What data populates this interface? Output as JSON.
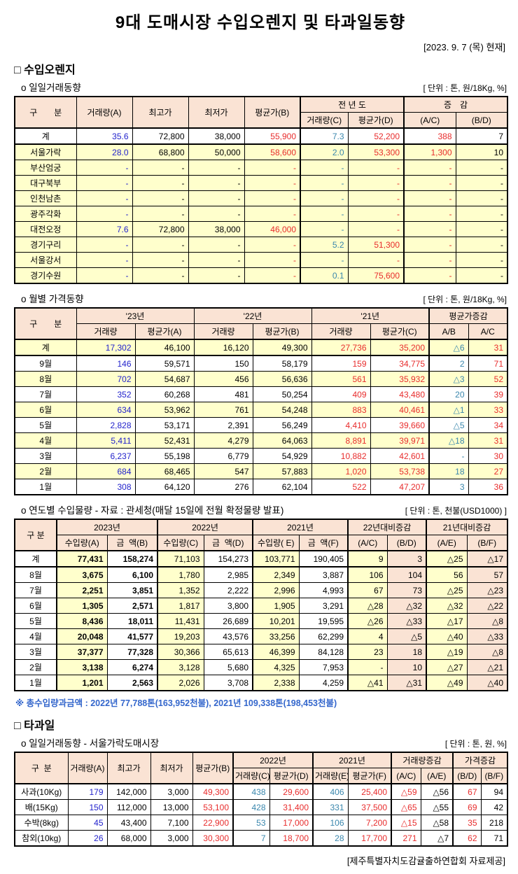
{
  "page": {
    "title": "9대 도매시장 수입오렌지 및 타과일동향",
    "date_note": "[2023.  9. 7 (목) 현재]",
    "footer": "[제주특별자치도감귤출하연합회 자료제공]"
  },
  "colors": {
    "header_bg": "#fae3d4",
    "stripe_bg": "#ffffcc",
    "value_blue": "#2222cc",
    "value_teal": "#3a87ad",
    "value_red": "#e82c2c",
    "note_blue": "#3366cc"
  },
  "section_orange": {
    "heading": "□ 수입오렌지"
  },
  "section_fruit": {
    "heading": "□ 타과일"
  },
  "daily_table": {
    "heading": "o 일일거래동향",
    "unit": "[ 단위 : 톤, 원/18Kg, %]",
    "header": {
      "gubun": "구　　분",
      "c1": "거래량(A)",
      "c2": "최고가",
      "c3": "최저가",
      "c4": "평균가(B)",
      "g1": "전 년 도",
      "g2": "증　감",
      "s1": "거래량(C)",
      "s2": "평균가(D)",
      "s3": "(A/C)",
      "s4": "(B/D)"
    },
    "col_styles": [
      "label",
      "blue",
      "black",
      "black",
      "red",
      "teal",
      "red",
      "red",
      "black"
    ],
    "rows": [
      {
        "bg": "w",
        "total": true,
        "cells": [
          "계",
          "35.6",
          "72,800",
          "38,000",
          "55,900",
          "7.3",
          "52,200",
          "388",
          "7"
        ]
      },
      {
        "bg": "y",
        "cells": [
          "서울가락",
          "28.0",
          "68,800",
          "50,000",
          "58,600",
          "2.0",
          "53,300",
          "1,300",
          "10"
        ]
      },
      {
        "bg": "y",
        "cells": [
          "부산엄궁",
          "-",
          "-",
          "-",
          "-",
          "-",
          "-",
          "-",
          "-"
        ]
      },
      {
        "bg": "y",
        "cells": [
          "대구북부",
          "-",
          "-",
          "-",
          "-",
          "-",
          "-",
          "-",
          "-"
        ]
      },
      {
        "bg": "y",
        "cells": [
          "인천남촌",
          "-",
          "-",
          "-",
          "-",
          "-",
          "-",
          "-",
          "-"
        ]
      },
      {
        "bg": "y",
        "cells": [
          "광주각화",
          "-",
          "-",
          "-",
          "-",
          "-",
          "-",
          "-",
          "-"
        ]
      },
      {
        "bg": "y",
        "cells": [
          "대전오정",
          "7.6",
          "72,800",
          "38,000",
          "46,000",
          "-",
          "-",
          "-",
          "-"
        ]
      },
      {
        "bg": "y",
        "cells": [
          "경기구리",
          "-",
          "-",
          "-",
          "-",
          "5.2",
          "51,300",
          "-",
          "-"
        ]
      },
      {
        "bg": "y",
        "cells": [
          "서울강서",
          "-",
          "-",
          "-",
          "-",
          "-",
          "-",
          "-",
          "-"
        ]
      },
      {
        "bg": "y",
        "cells": [
          "경기수원",
          "-",
          "-",
          "-",
          "-",
          "0.1",
          "75,600",
          "-",
          "-"
        ]
      }
    ]
  },
  "monthly_table": {
    "heading": "o 월별 가격동향",
    "unit": "[ 단위 : 톤, 원/18Kg, %]",
    "header": {
      "gubun": "구　　분",
      "g1": "'23년",
      "g2": "'22년",
      "g3": "'21년",
      "g4": "평균가증감",
      "s1": "거래량",
      "s2": "평균가(A)",
      "s3": "거래량",
      "s4": "평균가(B)",
      "s5": "거래량",
      "s6": "평균가(C)",
      "s7": "A/B",
      "s8": "A/C"
    },
    "col_styles": [
      "label",
      "blue",
      "black",
      "black",
      "black",
      "red",
      "red",
      "teal",
      "red"
    ],
    "rows": [
      {
        "bg": "y",
        "total": true,
        "cells": [
          "계",
          "17,302",
          "46,100",
          "16,120",
          "49,300",
          "27,736",
          "35,200",
          "△6",
          "31"
        ]
      },
      {
        "bg": "w",
        "cells": [
          "9월",
          "146",
          "59,571",
          "150",
          "58,179",
          "159",
          "34,775",
          "2",
          "71"
        ]
      },
      {
        "bg": "y",
        "cells": [
          "8월",
          "702",
          "54,687",
          "456",
          "56,636",
          "561",
          "35,932",
          "△3",
          "52"
        ]
      },
      {
        "bg": "w",
        "cells": [
          "7월",
          "352",
          "60,268",
          "481",
          "50,254",
          "409",
          "43,480",
          "20",
          "39"
        ]
      },
      {
        "bg": "y",
        "cells": [
          "6월",
          "634",
          "53,962",
          "761",
          "54,248",
          "883",
          "40,461",
          "△1",
          "33"
        ]
      },
      {
        "bg": "w",
        "cells": [
          "5월",
          "2,828",
          "53,171",
          "2,391",
          "56,249",
          "4,410",
          "39,660",
          "△5",
          "34"
        ]
      },
      {
        "bg": "y",
        "cells": [
          "4월",
          "5,411",
          "52,431",
          "4,279",
          "64,063",
          "8,891",
          "39,971",
          "△18",
          "31"
        ]
      },
      {
        "bg": "w",
        "cells": [
          "3월",
          "6,237",
          "55,198",
          "6,779",
          "54,929",
          "10,882",
          "42,601",
          "-",
          "30"
        ]
      },
      {
        "bg": "y",
        "cells": [
          "2월",
          "684",
          "68,465",
          "547",
          "57,883",
          "1,020",
          "53,738",
          "18",
          "27"
        ]
      },
      {
        "bg": "w",
        "cells": [
          "1월",
          "308",
          "64,120",
          "276",
          "62,104",
          "522",
          "47,207",
          "3",
          "36"
        ]
      }
    ]
  },
  "yearly_table": {
    "heading": "o 연도별 수입물량 - 자료 : 관세청(매달 15일에 전월 확정물량 발표)",
    "unit": "[ 단위 : 톤, 천불(USD1000) ]",
    "note": "※ 총수입량과금액 : 2022년 77,788톤(163,952천불),  2021년 109,338톤(198,453천불)",
    "header": {
      "gubun": "구 분",
      "g1": "2023년",
      "g2": "2022년",
      "g3": "2021년",
      "g4": "22년대비증감",
      "g5": "21년대비증감",
      "s1": "수입량(A)",
      "s2": "금  액(B)",
      "s3": "수입량(C)",
      "s4": "금  액(D)",
      "s5": "수입량( E)",
      "s6": "금  액(F)",
      "s7": "(A/C)",
      "s8": "(B/D)",
      "s9": "(A/E)",
      "s10": "(B/F)"
    },
    "col_styles": [
      "label",
      "black",
      "black",
      "black",
      "black",
      "black",
      "black",
      "black",
      "black",
      "black",
      "black"
    ],
    "bold_cols": [
      1,
      2
    ],
    "col_bgs": [
      "w",
      "y",
      "w",
      "y",
      "w",
      "y",
      "w",
      "y",
      "p",
      "y",
      "p"
    ],
    "rows": [
      {
        "total": true,
        "cells": [
          "계",
          "77,431",
          "158,274",
          "71,103",
          "154,273",
          "103,771",
          "190,405",
          "9",
          "3",
          "△25",
          "△17"
        ]
      },
      {
        "cells": [
          "8월",
          "3,675",
          "6,100",
          "1,780",
          "2,985",
          "2,349",
          "3,887",
          "106",
          "104",
          "56",
          "57"
        ]
      },
      {
        "cells": [
          "7월",
          "2,251",
          "3,851",
          "1,352",
          "2,222",
          "2,996",
          "4,993",
          "67",
          "73",
          "△25",
          "△23"
        ]
      },
      {
        "cells": [
          "6월",
          "1,305",
          "2,571",
          "1,817",
          "3,800",
          "1,905",
          "3,291",
          "△28",
          "△32",
          "△32",
          "△22"
        ]
      },
      {
        "cells": [
          "5월",
          "8,436",
          "18,011",
          "11,431",
          "26,689",
          "10,201",
          "19,595",
          "△26",
          "△33",
          "△17",
          "△8"
        ]
      },
      {
        "cells": [
          "4월",
          "20,048",
          "41,577",
          "19,203",
          "43,576",
          "33,256",
          "62,299",
          "4",
          "△5",
          "△40",
          "△33"
        ]
      },
      {
        "cells": [
          "3월",
          "37,377",
          "77,328",
          "30,366",
          "65,613",
          "46,399",
          "84,128",
          "23",
          "18",
          "△19",
          "△8"
        ]
      },
      {
        "cells": [
          "2월",
          "3,138",
          "6,274",
          "3,128",
          "5,680",
          "4,325",
          "7,953",
          "-",
          "10",
          "△27",
          "△21"
        ]
      },
      {
        "cells": [
          "1월",
          "1,201",
          "2,563",
          "2,026",
          "3,708",
          "2,338",
          "4,259",
          "△41",
          "△31",
          "△49",
          "△40"
        ]
      }
    ]
  },
  "fruit_table": {
    "heading": "o 일일거래동향 - 서울가락도매시장",
    "unit": "[ 단위 : 톤, 원, %]",
    "header": {
      "gubun": "구  분",
      "c1": "거래량(A)",
      "c2": "최고가",
      "c3": "최저가",
      "c4": "평균가(B)",
      "g1": "2022년",
      "g2": "2021년",
      "g3": "거래량증감",
      "g4": "가격증감",
      "s1": "거래량(C)",
      "s2": "평균가(D)",
      "s3": "거래량(E)",
      "s4": "평균가(F)",
      "s5": "(A/C)",
      "s6": "(A/E)",
      "s7": "(B/D)",
      "s8": "(B/F)"
    },
    "col_styles": [
      "label",
      "blue",
      "black",
      "black",
      "red",
      "teal",
      "red",
      "teal",
      "red",
      "red",
      "black",
      "red",
      "black"
    ],
    "rows": [
      {
        "cells": [
          "사과(10Kg)",
          "179",
          "142,000",
          "3,000",
          "49,300",
          "438",
          "29,600",
          "406",
          "25,400",
          "△59",
          "△56",
          "67",
          "94"
        ]
      },
      {
        "cells": [
          "배(15Kg)",
          "150",
          "112,000",
          "13,000",
          "53,100",
          "428",
          "31,400",
          "331",
          "37,500",
          "△65",
          "△55",
          "69",
          "42"
        ]
      },
      {
        "cells": [
          "수박(8kg)",
          "45",
          "43,400",
          "7,100",
          "22,900",
          "53",
          "17,000",
          "106",
          "7,200",
          "△15",
          "△58",
          "35",
          "218"
        ]
      },
      {
        "cells": [
          "참외(10kg)",
          "26",
          "68,000",
          "3,000",
          "30,300",
          "7",
          "18,700",
          "28",
          "17,700",
          "271",
          "△7",
          "62",
          "71"
        ]
      }
    ]
  }
}
